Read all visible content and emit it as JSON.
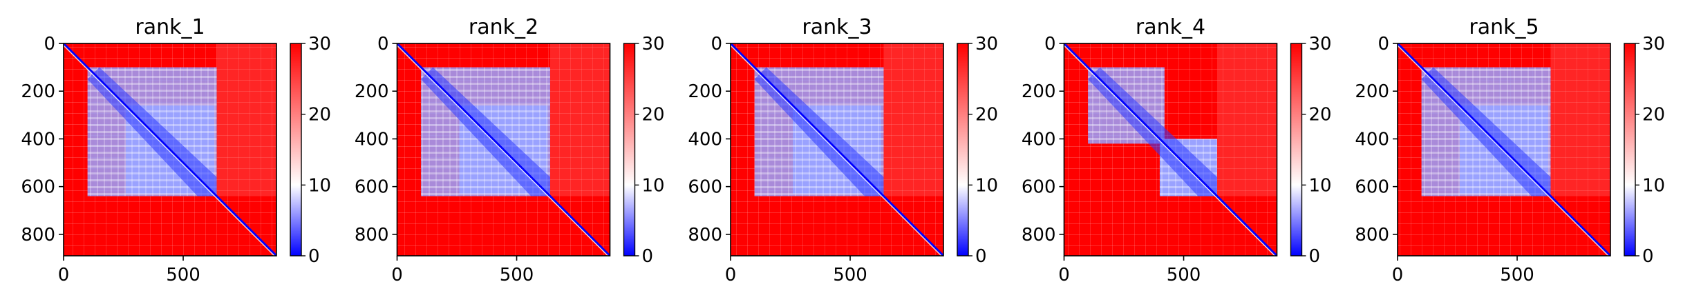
{
  "chart_data": [
    {
      "type": "heatmap",
      "title": "rank_1",
      "xlim": [
        0,
        890
      ],
      "ylim": [
        890,
        0
      ],
      "x_ticks": [
        0,
        500
      ],
      "y_ticks": [
        0,
        200,
        400,
        600,
        800
      ],
      "colorbar": {
        "range": [
          0,
          30
        ],
        "ticks": [
          0,
          10,
          20,
          30
        ],
        "colors": [
          "#0000ff",
          "#ffffff",
          "#ff0000"
        ]
      },
      "low_error_blocks": [
        {
          "from": 100,
          "to": 640
        },
        {
          "from": 260,
          "to": 630
        }
      ],
      "values_note": ""
    },
    {
      "type": "heatmap",
      "title": "rank_2",
      "xlim": [
        0,
        890
      ],
      "ylim": [
        890,
        0
      ],
      "x_ticks": [
        0,
        500
      ],
      "y_ticks": [
        0,
        200,
        400,
        600,
        800
      ],
      "colorbar": {
        "range": [
          0,
          30
        ],
        "ticks": [
          0,
          10,
          20,
          30
        ],
        "colors": [
          "#0000ff",
          "#ffffff",
          "#ff0000"
        ]
      },
      "low_error_blocks": [
        {
          "from": 100,
          "to": 640
        },
        {
          "from": 260,
          "to": 630
        }
      ]
    },
    {
      "type": "heatmap",
      "title": "rank_3",
      "xlim": [
        0,
        890
      ],
      "ylim": [
        890,
        0
      ],
      "x_ticks": [
        0,
        500
      ],
      "y_ticks": [
        0,
        200,
        400,
        600,
        800
      ],
      "colorbar": {
        "range": [
          0,
          30
        ],
        "ticks": [
          0,
          10,
          20,
          30
        ],
        "colors": [
          "#0000ff",
          "#ffffff",
          "#ff0000"
        ]
      },
      "low_error_blocks": [
        {
          "from": 100,
          "to": 640
        },
        {
          "from": 260,
          "to": 630
        }
      ]
    },
    {
      "type": "heatmap",
      "title": "rank_4",
      "xlim": [
        0,
        890
      ],
      "ylim": [
        890,
        0
      ],
      "x_ticks": [
        0,
        500
      ],
      "y_ticks": [
        0,
        200,
        400,
        600,
        800
      ],
      "colorbar": {
        "range": [
          0,
          30
        ],
        "ticks": [
          0,
          10,
          20,
          30
        ],
        "colors": [
          "#0000ff",
          "#ffffff",
          "#ff0000"
        ]
      },
      "low_error_blocks": [
        {
          "from": 100,
          "to": 420
        },
        {
          "from": 400,
          "to": 640
        }
      ]
    },
    {
      "type": "heatmap",
      "title": "rank_5",
      "xlim": [
        0,
        890
      ],
      "ylim": [
        890,
        0
      ],
      "x_ticks": [
        0,
        500
      ],
      "y_ticks": [
        0,
        200,
        400,
        600,
        800
      ],
      "colorbar": {
        "range": [
          0,
          30
        ],
        "ticks": [
          0,
          10,
          20,
          30
        ],
        "colors": [
          "#0000ff",
          "#ffffff",
          "#ff0000"
        ]
      },
      "low_error_blocks": [
        {
          "from": 100,
          "to": 640
        },
        {
          "from": 260,
          "to": 630
        }
      ]
    }
  ]
}
